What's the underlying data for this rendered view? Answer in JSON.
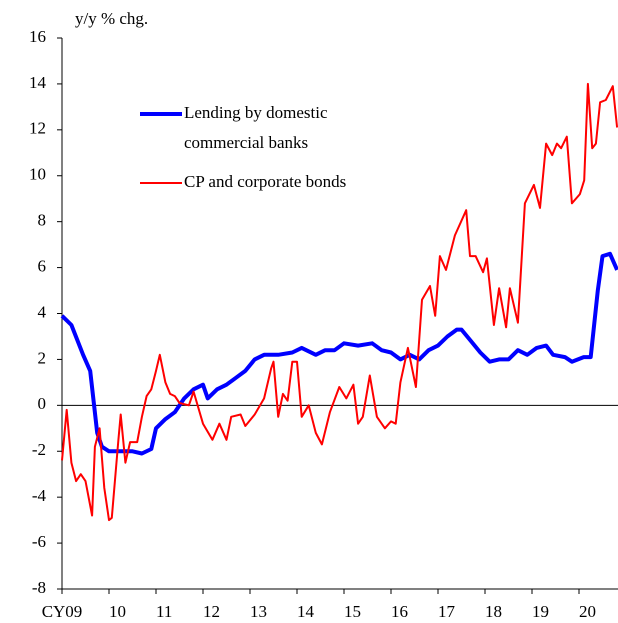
{
  "chart_data": {
    "type": "line",
    "y_axis_label": "y/y % chg.",
    "xlim": [
      2009,
      2020.83
    ],
    "xticks": [
      {
        "value": 2009,
        "label": "CY09"
      },
      {
        "value": 2010,
        "label": "10"
      },
      {
        "value": 2011,
        "label": "11"
      },
      {
        "value": 2012,
        "label": "12"
      },
      {
        "value": 2013,
        "label": "13"
      },
      {
        "value": 2014,
        "label": "14"
      },
      {
        "value": 2015,
        "label": "15"
      },
      {
        "value": 2016,
        "label": "16"
      },
      {
        "value": 2017,
        "label": "17"
      },
      {
        "value": 2018,
        "label": "18"
      },
      {
        "value": 2019,
        "label": "19"
      },
      {
        "value": 2020,
        "label": "20"
      }
    ],
    "ylim": [
      -8,
      16
    ],
    "yticks": [
      -8,
      -6,
      -4,
      -2,
      0,
      2,
      4,
      6,
      8,
      10,
      12,
      14,
      16
    ],
    "series": [
      {
        "name": "Lending by domestic commercial banks",
        "legend_lines": [
          "Lending by domestic",
          "commercial banks"
        ],
        "color": "#0000ff",
        "x": [
          2009.0,
          2009.2,
          2009.45,
          2009.6,
          2009.75,
          2009.85,
          2010.0,
          2010.3,
          2010.5,
          2010.7,
          2010.9,
          2011.0,
          2011.2,
          2011.4,
          2011.6,
          2011.8,
          2012.0,
          2012.1,
          2012.3,
          2012.5,
          2012.7,
          2012.9,
          2013.1,
          2013.3,
          2013.6,
          2013.9,
          2014.1,
          2014.4,
          2014.6,
          2014.8,
          2015.0,
          2015.3,
          2015.6,
          2015.8,
          2016.0,
          2016.2,
          2016.4,
          2016.6,
          2016.8,
          2017.0,
          2017.2,
          2017.4,
          2017.5,
          2017.7,
          2017.9,
          2018.1,
          2018.3,
          2018.5,
          2018.7,
          2018.9,
          2019.1,
          2019.3,
          2019.45,
          2019.7,
          2019.85,
          2020.1,
          2020.25,
          2020.4,
          2020.5,
          2020.66,
          2020.81
        ],
        "values": [
          3.9,
          3.5,
          2.2,
          1.5,
          -1.2,
          -1.8,
          -2.0,
          -2.0,
          -2.0,
          -2.1,
          -1.9,
          -1.0,
          -0.6,
          -0.3,
          0.3,
          0.7,
          0.9,
          0.3,
          0.7,
          0.9,
          1.2,
          1.5,
          2.0,
          2.2,
          2.2,
          2.3,
          2.5,
          2.2,
          2.4,
          2.4,
          2.7,
          2.6,
          2.7,
          2.4,
          2.3,
          2.0,
          2.2,
          2.0,
          2.4,
          2.6,
          3.0,
          3.3,
          3.3,
          2.8,
          2.3,
          1.9,
          2.0,
          2.0,
          2.4,
          2.2,
          2.5,
          2.6,
          2.2,
          2.1,
          1.9,
          2.1,
          2.1,
          5.0,
          6.5,
          6.6,
          5.9
        ]
      },
      {
        "name": "CP and corporate bonds",
        "color": "#ff0000",
        "x": [
          2009.0,
          2009.1,
          2009.2,
          2009.3,
          2009.4,
          2009.5,
          2009.64,
          2009.7,
          2009.8,
          2009.9,
          2010.0,
          2010.06,
          2010.2,
          2010.25,
          2010.35,
          2010.45,
          2010.6,
          2010.7,
          2010.8,
          2010.9,
          2011.0,
          2011.08,
          2011.2,
          2011.3,
          2011.4,
          2011.5,
          2011.7,
          2011.8,
          2012.0,
          2012.2,
          2012.35,
          2012.5,
          2012.6,
          2012.8,
          2012.9,
          2013.1,
          2013.3,
          2013.45,
          2013.5,
          2013.6,
          2013.7,
          2013.8,
          2013.9,
          2014.0,
          2014.1,
          2014.25,
          2014.4,
          2014.53,
          2014.7,
          2014.9,
          2015.05,
          2015.2,
          2015.3,
          2015.4,
          2015.55,
          2015.7,
          2015.87,
          2016.0,
          2016.1,
          2016.2,
          2016.36,
          2016.53,
          2016.66,
          2016.83,
          2016.94,
          2017.04,
          2017.17,
          2017.36,
          2017.6,
          2017.68,
          2017.8,
          2017.96,
          2018.04,
          2018.19,
          2018.3,
          2018.45,
          2018.53,
          2018.7,
          2018.85,
          2019.04,
          2019.17,
          2019.3,
          2019.43,
          2019.53,
          2019.62,
          2019.74,
          2019.85,
          2020.02,
          2020.11,
          2020.19,
          2020.28,
          2020.36,
          2020.45,
          2020.57,
          2020.72,
          2020.81
        ],
        "values": [
          -2.4,
          -0.2,
          -2.5,
          -3.3,
          -3.0,
          -3.3,
          -4.8,
          -1.8,
          -1.0,
          -3.6,
          -5.0,
          -4.9,
          -1.5,
          -0.4,
          -2.5,
          -1.6,
          -1.6,
          -0.5,
          0.4,
          0.7,
          1.5,
          2.2,
          1.0,
          0.5,
          0.4,
          0.1,
          0.0,
          0.6,
          -0.8,
          -1.5,
          -0.8,
          -1.5,
          -0.5,
          -0.4,
          -0.9,
          -0.4,
          0.3,
          1.6,
          1.9,
          -0.5,
          0.5,
          0.2,
          1.9,
          1.9,
          -0.5,
          0.0,
          -1.2,
          -1.7,
          -0.3,
          0.8,
          0.3,
          0.9,
          -0.8,
          -0.5,
          1.3,
          -0.5,
          -1.0,
          -0.7,
          -0.8,
          1.0,
          2.5,
          0.8,
          4.6,
          5.2,
          3.9,
          6.5,
          5.9,
          7.4,
          8.5,
          6.5,
          6.5,
          5.8,
          6.4,
          3.5,
          5.1,
          3.4,
          5.1,
          3.6,
          8.8,
          9.6,
          8.6,
          11.4,
          10.9,
          11.4,
          11.2,
          11.7,
          8.8,
          9.2,
          9.8,
          14.0,
          11.2,
          11.4,
          13.2,
          13.3,
          13.9,
          12.1
        ]
      }
    ]
  }
}
